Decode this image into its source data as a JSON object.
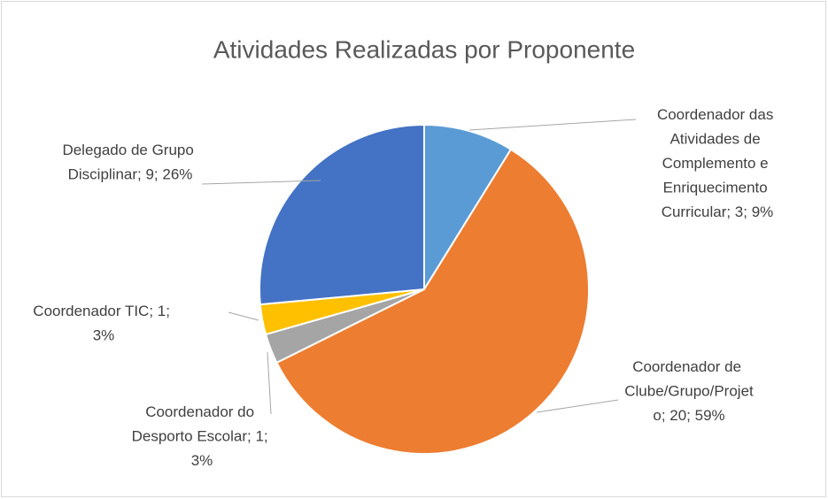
{
  "chart_data": {
    "type": "pie",
    "title": "Atividades Realizadas por Proponente",
    "labels": [
      "Coordenador das Atividades de Complemento e Enriquecimento Curricular; 3; 9%",
      "Coordenador de Clube/Grupo/Projeto; 20; 59%",
      "Coordenador do Desporto Escolar; 1; 3%",
      "Coordenador TIC; 1; 3%",
      "Delegado de Grupo Disciplinar; 9; 26%"
    ],
    "values": [
      3,
      20,
      1,
      1,
      9
    ],
    "colors": [
      "#5b9bd5",
      "#ed7d31",
      "#a5a5a5",
      "#ffc000",
      "#4472c4"
    ]
  }
}
